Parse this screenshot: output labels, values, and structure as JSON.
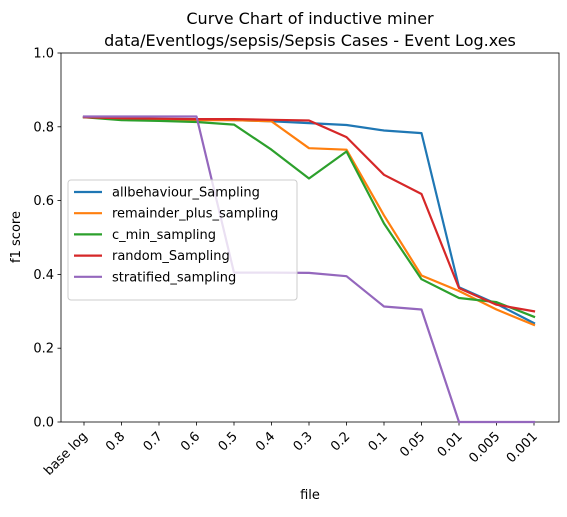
{
  "chart_data": {
    "type": "line",
    "title": "Curve Chart of inductive miner",
    "subtitle": "data/Eventlogs/sepsis/Sepsis Cases - Event Log.xes",
    "xlabel": "file",
    "ylabel": "f1 score",
    "ylim": [
      0,
      1
    ],
    "yticks": [
      "0.0",
      "0.2",
      "0.4",
      "0.6",
      "0.8",
      "1.0"
    ],
    "categories": [
      "base log",
      "0.8",
      "0.7",
      "0.6",
      "0.5",
      "0.4",
      "0.3",
      "0.2",
      "0.1",
      "0.05",
      "0.01",
      "0.005",
      "0.001"
    ],
    "grid": false,
    "legend_position": "center-left",
    "series": [
      {
        "name": "allbehaviour_Sampling",
        "color": "#1f77b4",
        "values": [
          0.826,
          0.823,
          0.821,
          0.82,
          0.818,
          0.815,
          0.81,
          0.805,
          0.79,
          0.783,
          0.365,
          0.32,
          0.268
        ]
      },
      {
        "name": "remainder_plus_sampling",
        "color": "#ff7f0e",
        "values": [
          0.826,
          0.822,
          0.82,
          0.818,
          0.818,
          0.815,
          0.742,
          0.738,
          0.56,
          0.397,
          0.355,
          0.305,
          0.263
        ]
      },
      {
        "name": "c_min_sampling",
        "color": "#2ca02c",
        "values": [
          0.826,
          0.818,
          0.816,
          0.813,
          0.806,
          0.738,
          0.66,
          0.733,
          0.538,
          0.387,
          0.336,
          0.325,
          0.285
        ]
      },
      {
        "name": "random_Sampling",
        "color": "#d62728",
        "values": [
          0.826,
          0.823,
          0.822,
          0.821,
          0.821,
          0.819,
          0.817,
          0.772,
          0.67,
          0.618,
          0.363,
          0.318,
          0.3
        ]
      },
      {
        "name": "stratified_sampling",
        "color": "#9467bd",
        "values": [
          0.828,
          0.828,
          0.828,
          0.828,
          0.405,
          0.405,
          0.404,
          0.395,
          0.313,
          0.305,
          0.0,
          0.0,
          0.0
        ]
      }
    ]
  }
}
